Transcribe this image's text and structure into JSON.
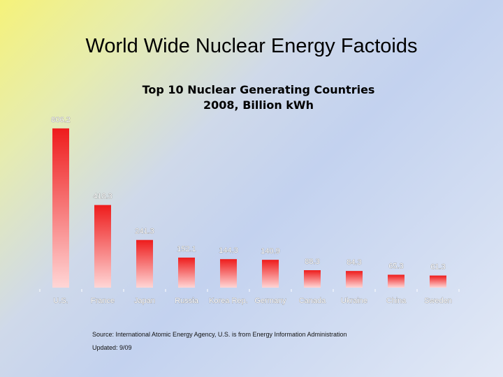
{
  "slide": {
    "title": "World Wide Nuclear Energy Factoids"
  },
  "chart_data": {
    "type": "bar",
    "title_line1": "Top 10 Nuclear Generating Countries",
    "title_line2": "2008, Billion kWh",
    "categories": [
      "U.S.",
      "France",
      "Japan",
      "Russia",
      "Korea Rep.",
      "Germany",
      "Canada",
      "Ukraine",
      "China",
      "Sweden"
    ],
    "values": [
      806.2,
      418.3,
      241.3,
      152.1,
      144.3,
      140.9,
      88.3,
      84.3,
      65.3,
      61.3
    ],
    "value_labels": [
      "806.2",
      "418.3",
      "241.3",
      "152.1",
      "144.3",
      "140.9",
      "88.3",
      "84.3",
      "65.3",
      "61.3"
    ],
    "ylim": [
      0,
      820
    ],
    "grid": false,
    "bar_color": "#ee1c1c"
  },
  "footer": {
    "source": "Source: International Atomic Energy Agency, U.S. is from Energy Information Administration",
    "updated": "Updated: 9/09"
  }
}
